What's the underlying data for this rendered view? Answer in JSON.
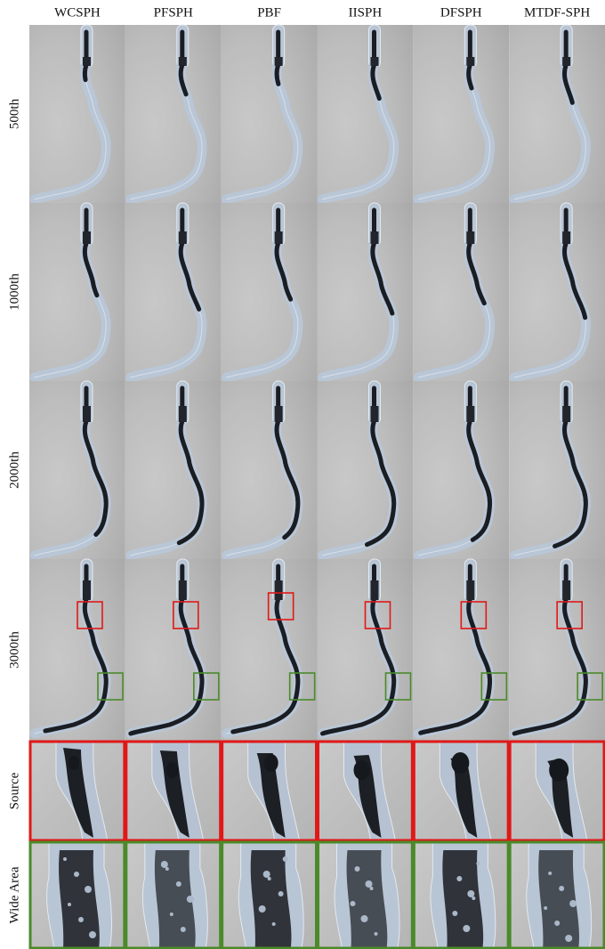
{
  "columns": [
    "WCSPH",
    "PFSPH",
    "PBF",
    "IISPH",
    "DFSPH",
    "MTDF-SPH"
  ],
  "rows": [
    "500th",
    "1000th",
    "2000th",
    "3000th",
    "Source",
    "Wide Area"
  ]
}
